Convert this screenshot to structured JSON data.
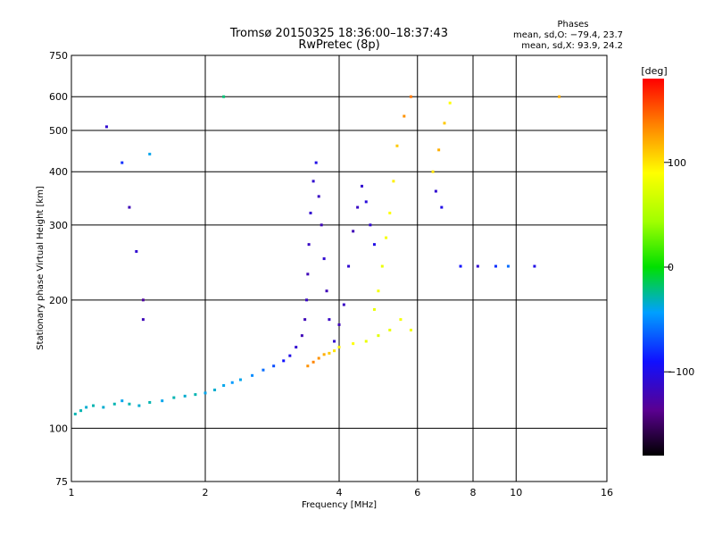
{
  "chart_data": {
    "type": "scatter",
    "title_line1": "Tromsø 20150325 18:36:00–18:37:43",
    "title_line2": "RwPretec (8p)",
    "xlabel": "Frequency [MHz]",
    "ylabel": "Stationary phase Virtual Height [km]",
    "x_scale": "log",
    "y_scale": "log",
    "xlim": [
      1,
      16
    ],
    "ylim": [
      75,
      750
    ],
    "x_ticks": [
      1,
      2,
      4,
      6,
      8,
      10,
      16
    ],
    "x_tick_labels": [
      "1",
      "2",
      "4",
      "6",
      "8",
      "10",
      "16"
    ],
    "y_ticks": [
      75,
      100,
      200,
      300,
      400,
      500,
      600,
      750
    ],
    "y_tick_labels": [
      "75",
      "100",
      "200",
      "300",
      "400",
      "500",
      "600",
      "750"
    ],
    "grid": true,
    "phases": {
      "heading": "Phases",
      "o_stats": "mean, sd,O: −79.4, 23.7",
      "x_stats": "mean, sd,X:  93.9, 24.2"
    },
    "colorbar": {
      "unit": "[deg]",
      "range": [
        -180,
        180
      ],
      "ticks": [
        -100,
        0,
        100
      ],
      "tick_labels": [
        "−100",
        "0",
        "100"
      ]
    },
    "series": [
      {
        "points": [
          {
            "x": 1.02,
            "y": 108,
            "p": -30
          },
          {
            "x": 1.05,
            "y": 110,
            "p": -30
          },
          {
            "x": 1.08,
            "y": 112,
            "p": -35
          },
          {
            "x": 1.12,
            "y": 113,
            "p": -30
          },
          {
            "x": 1.18,
            "y": 112,
            "p": -35
          },
          {
            "x": 1.25,
            "y": 114,
            "p": -30
          },
          {
            "x": 1.3,
            "y": 116,
            "p": -40
          },
          {
            "x": 1.35,
            "y": 114,
            "p": -30
          },
          {
            "x": 1.42,
            "y": 113,
            "p": -35
          },
          {
            "x": 1.5,
            "y": 115,
            "p": -30
          },
          {
            "x": 1.6,
            "y": 116,
            "p": -40
          },
          {
            "x": 1.7,
            "y": 118,
            "p": -30
          },
          {
            "x": 1.8,
            "y": 119,
            "p": -35
          },
          {
            "x": 1.9,
            "y": 120,
            "p": -30
          },
          {
            "x": 2.0,
            "y": 121,
            "p": -40
          },
          {
            "x": 2.1,
            "y": 123,
            "p": -35
          },
          {
            "x": 2.2,
            "y": 126,
            "p": -40
          },
          {
            "x": 2.3,
            "y": 128,
            "p": -45
          },
          {
            "x": 2.4,
            "y": 130,
            "p": -40
          },
          {
            "x": 2.55,
            "y": 133,
            "p": -50
          },
          {
            "x": 2.7,
            "y": 137,
            "p": -60
          },
          {
            "x": 2.85,
            "y": 140,
            "p": -70
          },
          {
            "x": 3.0,
            "y": 144,
            "p": -90
          },
          {
            "x": 3.1,
            "y": 148,
            "p": -100
          },
          {
            "x": 3.2,
            "y": 155,
            "p": -110
          },
          {
            "x": 3.3,
            "y": 165,
            "p": -120
          },
          {
            "x": 3.35,
            "y": 180,
            "p": -120
          },
          {
            "x": 3.38,
            "y": 200,
            "p": -115
          },
          {
            "x": 3.4,
            "y": 230,
            "p": -120
          },
          {
            "x": 3.42,
            "y": 270,
            "p": -115
          },
          {
            "x": 3.45,
            "y": 320,
            "p": -110
          },
          {
            "x": 3.5,
            "y": 380,
            "p": -110
          },
          {
            "x": 3.55,
            "y": 420,
            "p": -100
          },
          {
            "x": 3.6,
            "y": 350,
            "p": -115
          },
          {
            "x": 3.65,
            "y": 300,
            "p": -120
          },
          {
            "x": 3.7,
            "y": 250,
            "p": -110
          },
          {
            "x": 3.75,
            "y": 210,
            "p": -120
          },
          {
            "x": 3.8,
            "y": 180,
            "p": -115
          },
          {
            "x": 3.9,
            "y": 160,
            "p": -110
          },
          {
            "x": 4.0,
            "y": 175,
            "p": -120
          },
          {
            "x": 4.1,
            "y": 195,
            "p": -115
          },
          {
            "x": 4.2,
            "y": 240,
            "p": -110
          },
          {
            "x": 4.3,
            "y": 290,
            "p": -120
          },
          {
            "x": 4.4,
            "y": 330,
            "p": -115
          },
          {
            "x": 4.5,
            "y": 370,
            "p": -110
          },
          {
            "x": 4.6,
            "y": 340,
            "p": -105
          },
          {
            "x": 4.7,
            "y": 300,
            "p": -110
          },
          {
            "x": 4.8,
            "y": 270,
            "p": -100
          },
          {
            "x": 3.4,
            "y": 140,
            "p": 130
          },
          {
            "x": 3.5,
            "y": 143,
            "p": 135
          },
          {
            "x": 3.6,
            "y": 146,
            "p": 130
          },
          {
            "x": 3.7,
            "y": 149,
            "p": 120
          },
          {
            "x": 3.8,
            "y": 150,
            "p": 110
          },
          {
            "x": 3.9,
            "y": 152,
            "p": 100
          },
          {
            "x": 4.0,
            "y": 155,
            "p": 95
          },
          {
            "x": 4.3,
            "y": 158,
            "p": 90
          },
          {
            "x": 4.6,
            "y": 160,
            "p": 80
          },
          {
            "x": 4.9,
            "y": 165,
            "p": 75
          },
          {
            "x": 5.2,
            "y": 170,
            "p": 80
          },
          {
            "x": 5.5,
            "y": 180,
            "p": 85
          },
          {
            "x": 5.8,
            "y": 170,
            "p": 85
          },
          {
            "x": 4.8,
            "y": 190,
            "p": 80
          },
          {
            "x": 4.9,
            "y": 210,
            "p": 85
          },
          {
            "x": 5.0,
            "y": 240,
            "p": 80
          },
          {
            "x": 5.1,
            "y": 280,
            "p": 85
          },
          {
            "x": 5.2,
            "y": 320,
            "p": 90
          },
          {
            "x": 5.3,
            "y": 380,
            "p": 95
          },
          {
            "x": 5.4,
            "y": 460,
            "p": 110
          },
          {
            "x": 5.6,
            "y": 540,
            "p": 130
          },
          {
            "x": 5.8,
            "y": 600,
            "p": 140
          },
          {
            "x": 6.5,
            "y": 400,
            "p": 100
          },
          {
            "x": 6.7,
            "y": 450,
            "p": 120
          },
          {
            "x": 6.9,
            "y": 520,
            "p": 110
          },
          {
            "x": 7.1,
            "y": 580,
            "p": 90
          },
          {
            "x": 6.6,
            "y": 360,
            "p": -110
          },
          {
            "x": 6.8,
            "y": 330,
            "p": -100
          },
          {
            "x": 7.5,
            "y": 240,
            "p": -90
          },
          {
            "x": 8.2,
            "y": 240,
            "p": -110
          },
          {
            "x": 9.0,
            "y": 240,
            "p": -80
          },
          {
            "x": 9.6,
            "y": 240,
            "p": -60
          },
          {
            "x": 11.0,
            "y": 240,
            "p": -100
          },
          {
            "x": 12.5,
            "y": 600,
            "p": 120
          },
          {
            "x": 1.3,
            "y": 420,
            "p": -80
          },
          {
            "x": 1.35,
            "y": 330,
            "p": -120
          },
          {
            "x": 1.4,
            "y": 260,
            "p": -110
          },
          {
            "x": 1.45,
            "y": 200,
            "p": -130
          },
          {
            "x": 1.45,
            "y": 180,
            "p": -120
          },
          {
            "x": 1.2,
            "y": 510,
            "p": -110
          },
          {
            "x": 1.5,
            "y": 440,
            "p": -40
          },
          {
            "x": 2.2,
            "y": 600,
            "p": -20
          }
        ]
      }
    ]
  }
}
